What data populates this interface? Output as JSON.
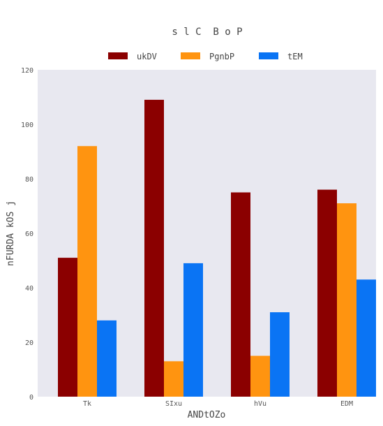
{
  "chart_data": {
    "type": "bar",
    "title": "s l C  B o P",
    "xlabel": "ANDtOZo",
    "ylabel": "nFURDA kOS j",
    "categories": [
      "Tk",
      "SIxu",
      "hVu",
      "EDM"
    ],
    "series": [
      {
        "name": "ukDV",
        "color": "#8b0000",
        "values": [
          51,
          109,
          75,
          76
        ]
      },
      {
        "name": "PgnbP",
        "color": "#ff9410",
        "values": [
          92,
          13,
          15,
          71
        ]
      },
      {
        "name": "tEM",
        "color": "#0a74f4",
        "values": [
          28,
          49,
          31,
          43
        ]
      }
    ],
    "ylim": [
      0,
      120
    ],
    "yticks": [
      0,
      20,
      40,
      60,
      80,
      100,
      120
    ],
    "grid": false,
    "legend_position": "top-center",
    "plot_background": "#e8e8f0"
  }
}
